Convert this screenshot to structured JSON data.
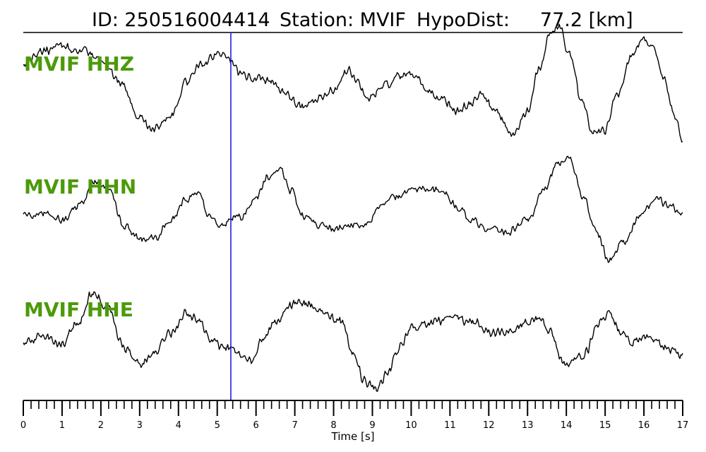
{
  "title": {
    "id_text": "ID: 250516004414",
    "station_text": "Station: MVIF",
    "dist_text": "HypoDist:     77.2 [km]"
  },
  "chart_data": {
    "type": "line",
    "xlabel": "Time [s]",
    "xlim": [
      0,
      17
    ],
    "x_major_ticks": [
      0,
      1,
      2,
      3,
      4,
      5,
      6,
      7,
      8,
      9,
      10,
      11,
      12,
      13,
      14,
      15,
      16,
      17
    ],
    "x_minor_step": 0.2,
    "pick_marker": {
      "time": 5.35,
      "color": "#1f1fd6"
    },
    "trace_color": "#000000",
    "label_color": "#4c9a0a",
    "series": [
      {
        "name": "MVIF HHZ",
        "t": [
          0,
          0.5,
          1.0,
          1.5,
          2.0,
          2.5,
          3.0,
          3.3,
          3.8,
          4.2,
          4.6,
          5.0,
          5.2,
          5.35,
          5.6,
          6.0,
          6.4,
          6.8,
          7.2,
          7.6,
          8.0,
          8.4,
          8.6,
          8.9,
          9.3,
          9.7,
          10.1,
          10.4,
          10.8,
          11.2,
          11.5,
          11.8,
          12.2,
          12.6,
          13.0,
          13.3,
          13.6,
          13.8,
          14.1,
          14.4,
          14.7,
          15.0,
          15.3,
          15.7,
          16.0,
          16.2,
          16.5,
          16.8,
          17.0
        ],
        "amp": [
          0.6,
          0.9,
          1.0,
          0.9,
          0.7,
          0.2,
          -0.6,
          -0.9,
          -0.6,
          0.2,
          0.6,
          0.85,
          0.8,
          0.7,
          0.35,
          0.3,
          0.2,
          -0.1,
          -0.4,
          -0.2,
          0.0,
          0.45,
          0.2,
          -0.2,
          0.1,
          0.3,
          0.35,
          0.0,
          -0.2,
          -0.45,
          -0.35,
          -0.1,
          -0.5,
          -1.0,
          -0.5,
          0.5,
          1.3,
          1.5,
          0.8,
          -0.3,
          -1.0,
          -0.9,
          -0.1,
          0.8,
          1.2,
          1.0,
          0.3,
          -0.6,
          -1.1
        ],
        "noise": 0.12
      },
      {
        "name": "MVIF HHN",
        "t": [
          0,
          0.5,
          1.0,
          1.5,
          1.85,
          2.2,
          2.6,
          3.0,
          3.4,
          3.8,
          4.2,
          4.5,
          4.8,
          5.1,
          5.35,
          5.6,
          6.0,
          6.3,
          6.6,
          6.9,
          7.2,
          7.6,
          8.0,
          8.4,
          8.8,
          9.2,
          9.6,
          10.0,
          10.4,
          10.8,
          11.2,
          11.6,
          12.0,
          12.5,
          13.0,
          13.4,
          13.8,
          14.1,
          14.4,
          14.8,
          15.1,
          15.5,
          15.9,
          16.3,
          16.7,
          17.0
        ],
        "amp": [
          -0.1,
          0.0,
          -0.2,
          0.2,
          0.7,
          0.5,
          -0.3,
          -0.6,
          -0.6,
          -0.2,
          0.3,
          0.4,
          -0.1,
          -0.3,
          -0.15,
          -0.1,
          0.3,
          0.8,
          1.0,
          0.5,
          -0.1,
          -0.3,
          -0.4,
          -0.3,
          -0.3,
          0.1,
          0.35,
          0.5,
          0.5,
          0.45,
          0.1,
          -0.2,
          -0.4,
          -0.45,
          -0.2,
          0.5,
          1.1,
          1.2,
          0.4,
          -0.5,
          -1.1,
          -0.7,
          -0.1,
          0.3,
          0.15,
          -0.05
        ],
        "noise": 0.11
      },
      {
        "name": "MVIF HHE",
        "t": [
          0,
          0.5,
          1.0,
          1.4,
          1.8,
          2.2,
          2.6,
          3.0,
          3.4,
          3.8,
          4.2,
          4.5,
          4.8,
          5.1,
          5.35,
          5.6,
          5.9,
          6.2,
          6.5,
          6.8,
          7.1,
          7.4,
          7.8,
          8.2,
          8.5,
          8.8,
          9.1,
          9.4,
          9.7,
          10.0,
          10.4,
          10.8,
          11.2,
          11.6,
          12.0,
          12.4,
          12.7,
          13.0,
          13.3,
          13.6,
          13.9,
          14.2,
          14.5,
          14.8,
          15.1,
          15.4,
          15.7,
          16.0,
          16.4,
          16.8,
          17.0
        ],
        "amp": [
          -0.1,
          0.0,
          -0.1,
          0.3,
          0.9,
          0.6,
          -0.2,
          -0.5,
          -0.3,
          0.1,
          0.5,
          0.4,
          0.0,
          -0.2,
          -0.2,
          -0.4,
          -0.5,
          0.0,
          0.3,
          0.6,
          0.7,
          0.65,
          0.5,
          0.3,
          -0.3,
          -0.9,
          -1.0,
          -0.7,
          -0.2,
          0.2,
          0.3,
          0.35,
          0.4,
          0.3,
          0.1,
          0.1,
          0.2,
          0.3,
          0.4,
          0.1,
          -0.5,
          -0.5,
          -0.3,
          0.3,
          0.5,
          0.1,
          -0.1,
          0.0,
          -0.1,
          -0.3,
          -0.35
        ],
        "noise": 0.12
      }
    ]
  }
}
